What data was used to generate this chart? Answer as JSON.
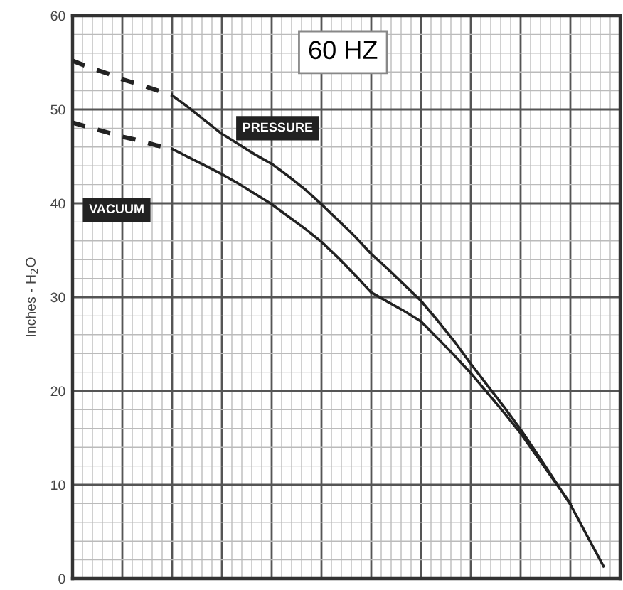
{
  "chart_data": {
    "type": "line",
    "ylabel": "Inches - H$_{2}$O",
    "annotations": [
      "60 HZ"
    ],
    "categories": [
      null,
      null,
      null,
      null,
      null,
      null,
      null,
      null,
      null,
      null,
      null,
      null,
      null,
      null,
      null,
      null,
      null,
      null,
      null,
      null,
      null,
      null,
      null,
      null,
      null,
      null,
      null,
      null,
      null,
      null,
      null,
      null,
      null,
      null
    ],
    "ylim": [
      0,
      60
    ],
    "yticks": [
      0,
      10,
      20,
      30,
      40,
      50,
      60
    ],
    "grid": true,
    "series": [
      {
        "name": "PRESSURE",
        "color": "#222222",
        "line_style": "solid",
        "values": [
          null,
          null,
          null,
          null,
          null,
          null,
          51.5,
          50.2,
          48.8,
          47.4,
          46.3,
          45.2,
          44.2,
          42.9,
          41.5,
          39.9,
          38.2,
          36.5,
          34.6,
          33.0,
          31.3,
          29.6,
          27.5,
          25.3,
          22.9,
          20.6,
          18.3,
          15.9,
          13.3,
          10.6,
          7.9,
          4.6,
          1.3,
          null
        ]
      },
      {
        "color": "#222222",
        "line_style": "dashed",
        "values": [
          55.2,
          54.5,
          53.9,
          53.2,
          52.7,
          52.1,
          51.5,
          null,
          null,
          null,
          null,
          null,
          null,
          null,
          null,
          null,
          null,
          null,
          null,
          null,
          null,
          null,
          null,
          null,
          null,
          null,
          null,
          null,
          null,
          null,
          null,
          null,
          null,
          null
        ]
      },
      {
        "name": "VACUUM",
        "color": "#222222",
        "line_style": "solid",
        "values": [
          null,
          null,
          null,
          null,
          null,
          null,
          45.8,
          44.9,
          44.0,
          43.1,
          42.1,
          41.0,
          39.9,
          38.6,
          37.3,
          35.9,
          34.2,
          32.4,
          30.5,
          29.5,
          28.5,
          27.4,
          25.6,
          23.8,
          21.9,
          19.8,
          17.7,
          15.5,
          13.0,
          10.5,
          8.0,
          null,
          null,
          null
        ]
      },
      {
        "color": "#222222",
        "line_style": "dashed",
        "values": [
          48.6,
          48.1,
          47.6,
          47.1,
          46.7,
          46.2,
          45.8,
          null,
          null,
          null,
          null,
          null,
          null,
          null,
          null,
          null,
          null,
          null,
          null,
          null,
          null,
          null,
          null,
          null,
          null,
          null,
          null,
          null,
          null,
          null,
          null,
          null,
          null,
          null
        ]
      }
    ]
  }
}
